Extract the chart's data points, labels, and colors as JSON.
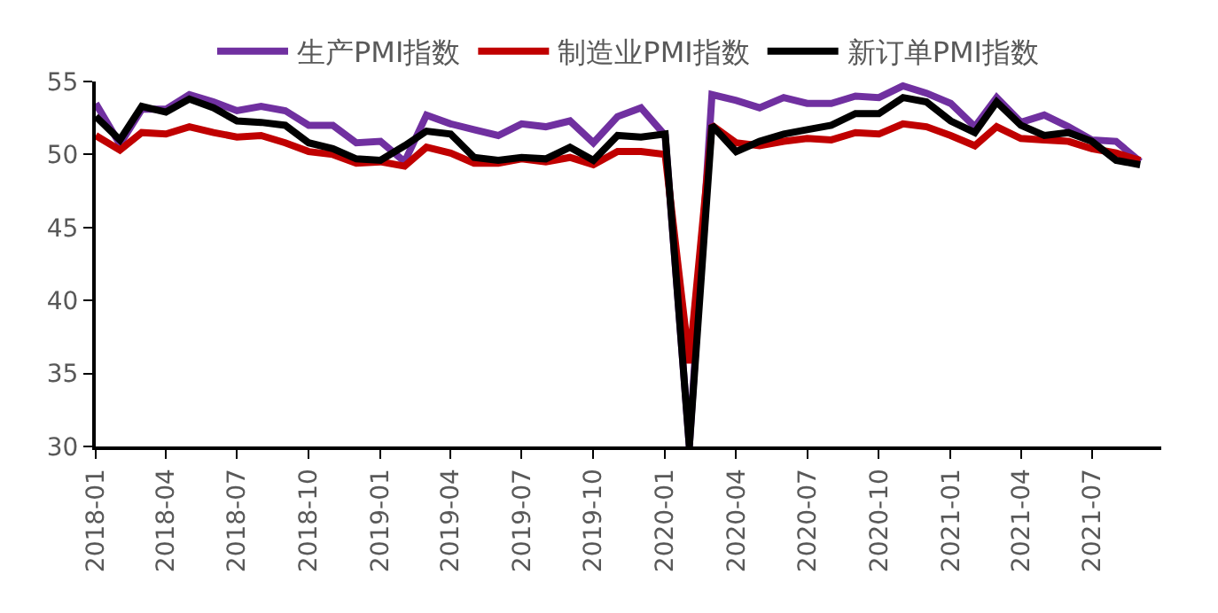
{
  "chart_data": {
    "type": "line",
    "x": [
      "2018-01",
      "2018-02",
      "2018-03",
      "2018-04",
      "2018-05",
      "2018-06",
      "2018-07",
      "2018-08",
      "2018-09",
      "2018-10",
      "2018-11",
      "2018-12",
      "2019-01",
      "2019-02",
      "2019-03",
      "2019-04",
      "2019-05",
      "2019-06",
      "2019-07",
      "2019-08",
      "2019-09",
      "2019-10",
      "2019-11",
      "2019-12",
      "2020-01",
      "2020-02",
      "2020-03",
      "2020-04",
      "2020-05",
      "2020-06",
      "2020-07",
      "2020-08",
      "2020-09",
      "2020-10",
      "2020-11",
      "2020-12",
      "2021-01",
      "2021-02",
      "2021-03",
      "2021-04",
      "2021-05",
      "2021-06",
      "2021-07",
      "2021-08",
      "2021-09"
    ],
    "series": [
      {
        "name": "生产PMI指数",
        "color": "#7030a0",
        "values": [
          53.5,
          50.7,
          53.1,
          53.1,
          54.1,
          53.6,
          53.0,
          53.3,
          53.0,
          52.0,
          52.0,
          50.8,
          50.9,
          49.5,
          52.7,
          52.1,
          51.7,
          51.3,
          52.1,
          51.9,
          52.3,
          50.8,
          52.6,
          53.2,
          51.3,
          30,
          54.1,
          53.7,
          53.2,
          53.9,
          53.5,
          53.5,
          54.0,
          53.9,
          54.7,
          54.2,
          53.5,
          51.9,
          53.9,
          52.2,
          52.7,
          51.9,
          51.0,
          50.9,
          49.5
        ]
      },
      {
        "name": "制造业PMI指数",
        "color": "#c00000",
        "values": [
          51.3,
          50.3,
          51.5,
          51.4,
          51.9,
          51.5,
          51.2,
          51.3,
          50.8,
          50.2,
          50.0,
          49.4,
          49.5,
          49.2,
          50.5,
          50.1,
          49.4,
          49.4,
          49.7,
          49.5,
          49.8,
          49.3,
          50.2,
          50.2,
          50.0,
          35.7,
          52.0,
          50.8,
          50.6,
          50.9,
          51.1,
          51.0,
          51.5,
          51.4,
          52.1,
          51.9,
          51.3,
          50.6,
          51.9,
          51.1,
          51.0,
          50.9,
          50.4,
          50.1,
          49.6
        ]
      },
      {
        "name": "新订单PMI指数",
        "color": "#000000",
        "values": [
          52.6,
          51.0,
          53.3,
          52.9,
          53.8,
          53.2,
          52.3,
          52.2,
          52.0,
          50.8,
          50.4,
          49.7,
          49.6,
          50.6,
          51.6,
          51.4,
          49.8,
          49.6,
          49.8,
          49.7,
          50.5,
          49.6,
          51.3,
          51.2,
          51.4,
          30,
          52.0,
          50.2,
          50.9,
          51.4,
          51.7,
          52.0,
          52.8,
          52.8,
          53.9,
          53.6,
          52.3,
          51.5,
          53.6,
          52.0,
          51.3,
          51.5,
          50.9,
          49.6,
          49.3
        ]
      }
    ],
    "xlim": [
      "2018-01",
      "2021-09-28"
    ],
    "xticks": [
      "2018-01",
      "2018-04",
      "2018-07",
      "2018-10",
      "2019-01",
      "2019-04",
      "2019-07",
      "2019-10",
      "2020-01",
      "2020-04",
      "2020-07",
      "2020-10",
      "2021-01",
      "2021-04",
      "2021-07"
    ],
    "ylim": [
      30,
      55
    ],
    "yticks": [
      30,
      35,
      40,
      45,
      50,
      55
    ],
    "legend": "top",
    "marker": "none",
    "line_style": "solid"
  }
}
